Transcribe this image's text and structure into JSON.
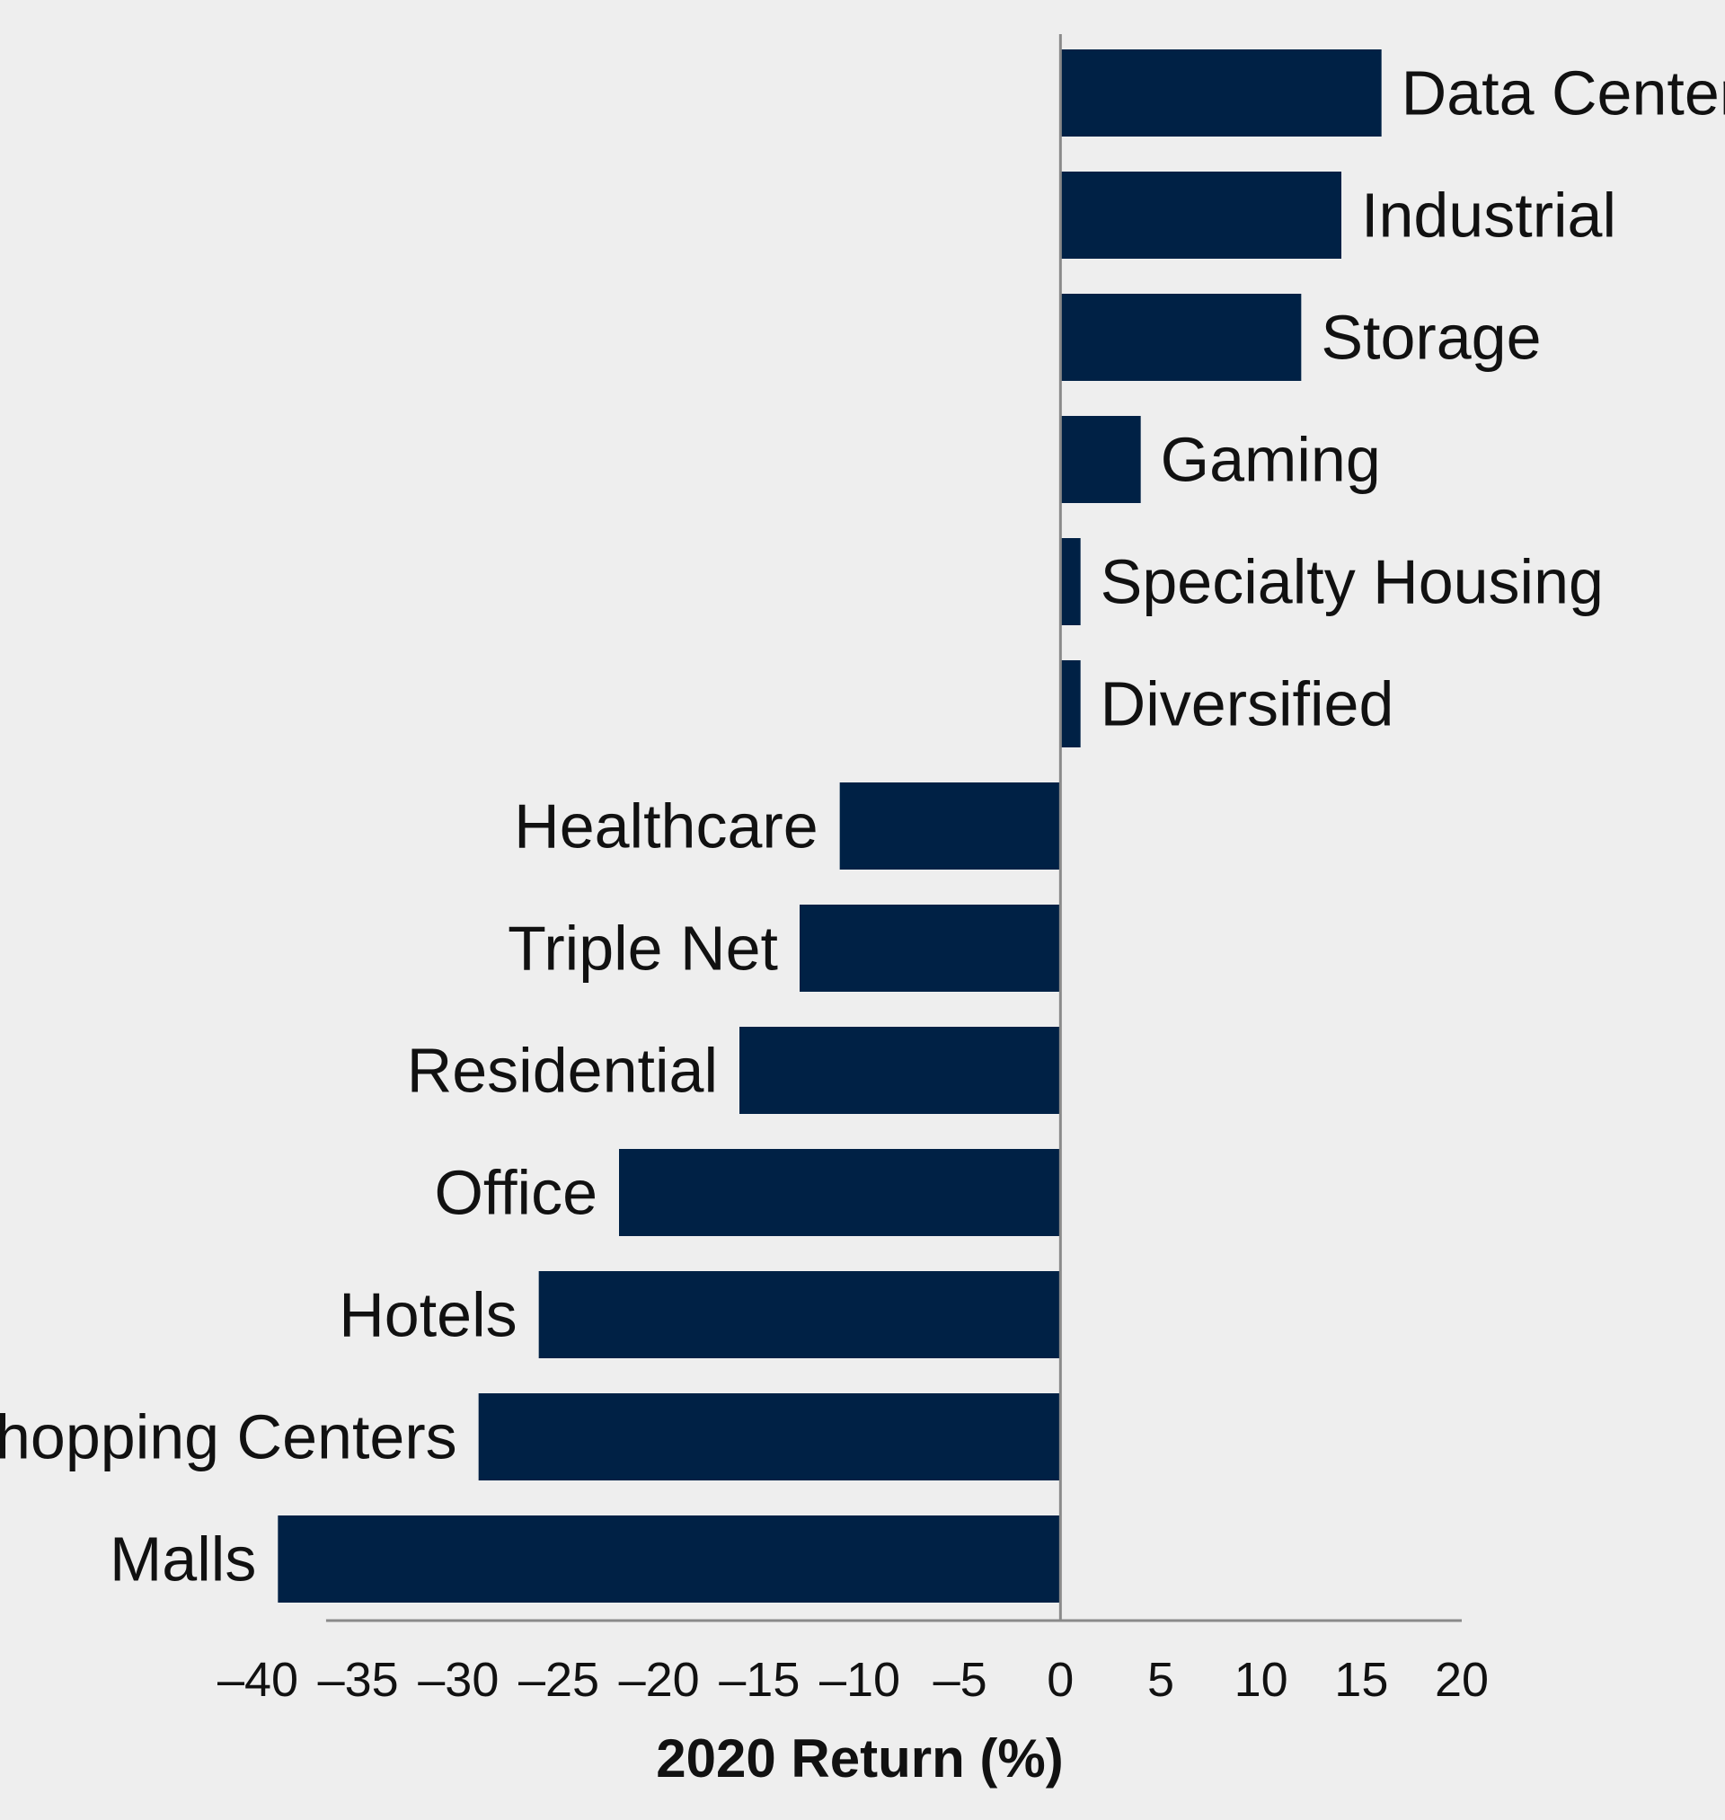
{
  "chart_data": {
    "type": "bar",
    "orientation": "horizontal",
    "categories": [
      "Data Center",
      "Industrial",
      "Storage",
      "Gaming",
      "Specialty Housing",
      "Diversified",
      "Healthcare",
      "Triple Net",
      "Residential",
      "Office",
      "Hotels",
      "Shopping Centers",
      "Malls"
    ],
    "values": [
      16,
      14,
      12,
      4,
      1,
      1,
      -11,
      -13,
      -16,
      -22,
      -26,
      -29,
      -39
    ],
    "title": "",
    "xlabel": "2020 Return (%)",
    "ylabel": "",
    "xlim": [
      -40,
      20
    ],
    "xticks": [
      -40,
      -35,
      -30,
      -25,
      -20,
      -15,
      -10,
      -5,
      0,
      5,
      10,
      15,
      20
    ],
    "xtick_labels": [
      "–40",
      "–35",
      "–30",
      "–25",
      "–20",
      "–15",
      "–10",
      "–5",
      "0",
      "5",
      "10",
      "15",
      "20"
    ],
    "grid": false,
    "legend": "none",
    "colors": {
      "bar": "#002145",
      "background": "#eeeeee",
      "axis": "#8a8a8a",
      "text": "#111111"
    }
  }
}
